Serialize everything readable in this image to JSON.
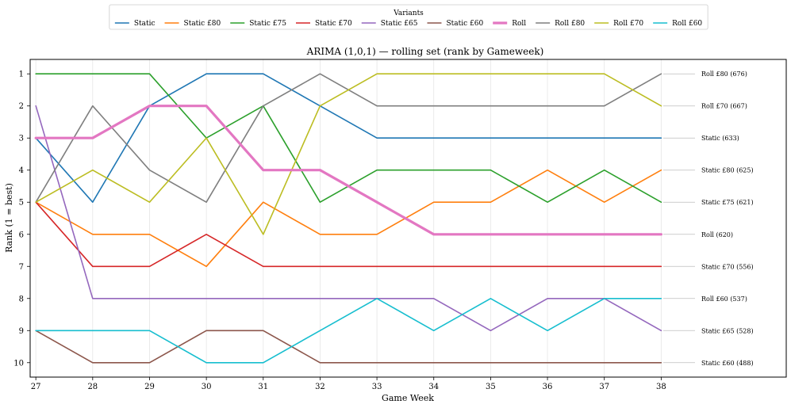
{
  "chart_data": {
    "type": "line",
    "title": "ARIMA (1,0,1) — rolling set (rank by Gameweek)",
    "xlabel": "Game Week",
    "ylabel": "Rank (1 = best)",
    "x": [
      27,
      28,
      29,
      30,
      31,
      32,
      33,
      34,
      35,
      36,
      37,
      38
    ],
    "xlim": [
      26.9,
      40.2
    ],
    "ylim": [
      10.45,
      0.55
    ],
    "yticks": [
      1,
      2,
      3,
      4,
      5,
      6,
      7,
      8,
      9,
      10
    ],
    "grid": "vertical",
    "legend": {
      "title": "Variants",
      "placement": "top-center"
    },
    "series": [
      {
        "name": "Static",
        "color": "#1f77b4",
        "width": 1.6,
        "values": [
          3,
          5,
          2,
          1,
          1,
          2,
          3,
          3,
          3,
          3,
          3,
          3
        ],
        "end_label": "Static  (633)"
      },
      {
        "name": "Static £80",
        "color": "#ff7f0e",
        "width": 1.6,
        "values": [
          5,
          6,
          6,
          7,
          5,
          6,
          6,
          5,
          5,
          4,
          5,
          4
        ],
        "end_label": "Static £80  (625)"
      },
      {
        "name": "Static £75",
        "color": "#2ca02c",
        "width": 1.6,
        "values": [
          1,
          1,
          1,
          3,
          2,
          5,
          4,
          4,
          4,
          5,
          4,
          5
        ],
        "end_label": "Static £75  (621)"
      },
      {
        "name": "Static £70",
        "color": "#d62728",
        "width": 1.6,
        "values": [
          5,
          7,
          7,
          6,
          7,
          7,
          7,
          7,
          7,
          7,
          7,
          7
        ],
        "end_label": "Static £70  (556)"
      },
      {
        "name": "Static £65",
        "color": "#9467bd",
        "width": 1.6,
        "values": [
          2,
          8,
          8,
          8,
          8,
          8,
          8,
          8,
          9,
          8,
          8,
          9
        ],
        "end_label": "Static £65  (528)"
      },
      {
        "name": "Static £60",
        "color": "#8c564b",
        "width": 1.6,
        "values": [
          9,
          10,
          10,
          9,
          9,
          10,
          10,
          10,
          10,
          10,
          10,
          10
        ],
        "end_label": "Static £60  (488)"
      },
      {
        "name": "Roll",
        "color": "#e377c2",
        "width": 3.2,
        "values": [
          3,
          3,
          2,
          2,
          4,
          4,
          5,
          6,
          6,
          6,
          6,
          6
        ],
        "end_label": "Roll  (620)"
      },
      {
        "name": "Roll £80",
        "color": "#7f7f7f",
        "width": 1.6,
        "values": [
          5,
          2,
          4,
          5,
          2,
          1,
          2,
          2,
          2,
          2,
          2,
          1
        ],
        "end_label": "Roll £80  (676)"
      },
      {
        "name": "Roll £70",
        "color": "#bcbd22",
        "width": 1.6,
        "values": [
          5,
          4,
          5,
          3,
          6,
          2,
          1,
          1,
          1,
          1,
          1,
          2
        ],
        "end_label": "Roll £70  (667)"
      },
      {
        "name": "Roll £60",
        "color": "#17becf",
        "width": 1.6,
        "values": [
          9,
          9,
          9,
          10,
          10,
          9,
          8,
          9,
          8,
          9,
          8,
          8
        ],
        "end_label": "Roll £60  (537)"
      }
    ],
    "end_labels_order": [
      "Roll £80",
      "Roll £70",
      "Static",
      "Static £80",
      "Static £75",
      "Roll",
      "Static £70",
      "Roll £60",
      "Static £65",
      "Static £60"
    ]
  }
}
